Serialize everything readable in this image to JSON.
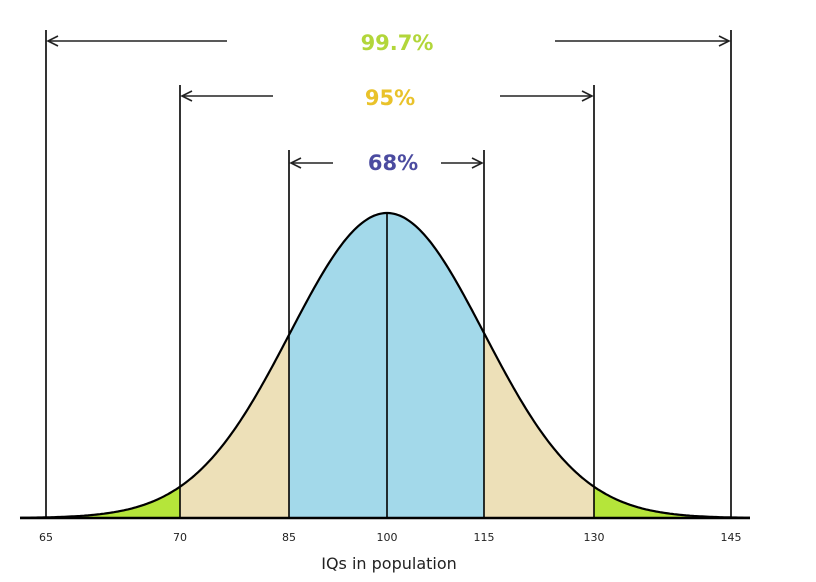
{
  "chart_data": {
    "type": "area",
    "xlabel": "IQs in population",
    "ticks": [
      {
        "label": "65",
        "region": 0
      },
      {
        "label": "70",
        "region": 1
      },
      {
        "label": "85",
        "region": 2
      },
      {
        "label": "100",
        "region": 3
      },
      {
        "label": "115",
        "region": 4
      },
      {
        "label": "130",
        "region": 5
      },
      {
        "label": "145",
        "region": 6
      }
    ],
    "bands": [
      {
        "label": "68%",
        "from_region": 2,
        "to_region": 4,
        "color": "#4b4ba0",
        "fill": "#a3d9ea"
      },
      {
        "label": "95%",
        "from_region": 1,
        "to_region": 5,
        "color": "#e9c22a",
        "fill": "#ede0b8"
      },
      {
        "label": "99.7%",
        "from_region": 0,
        "to_region": 6,
        "color": "#b2d63a",
        "fill": "#b5e53a"
      }
    ]
  }
}
